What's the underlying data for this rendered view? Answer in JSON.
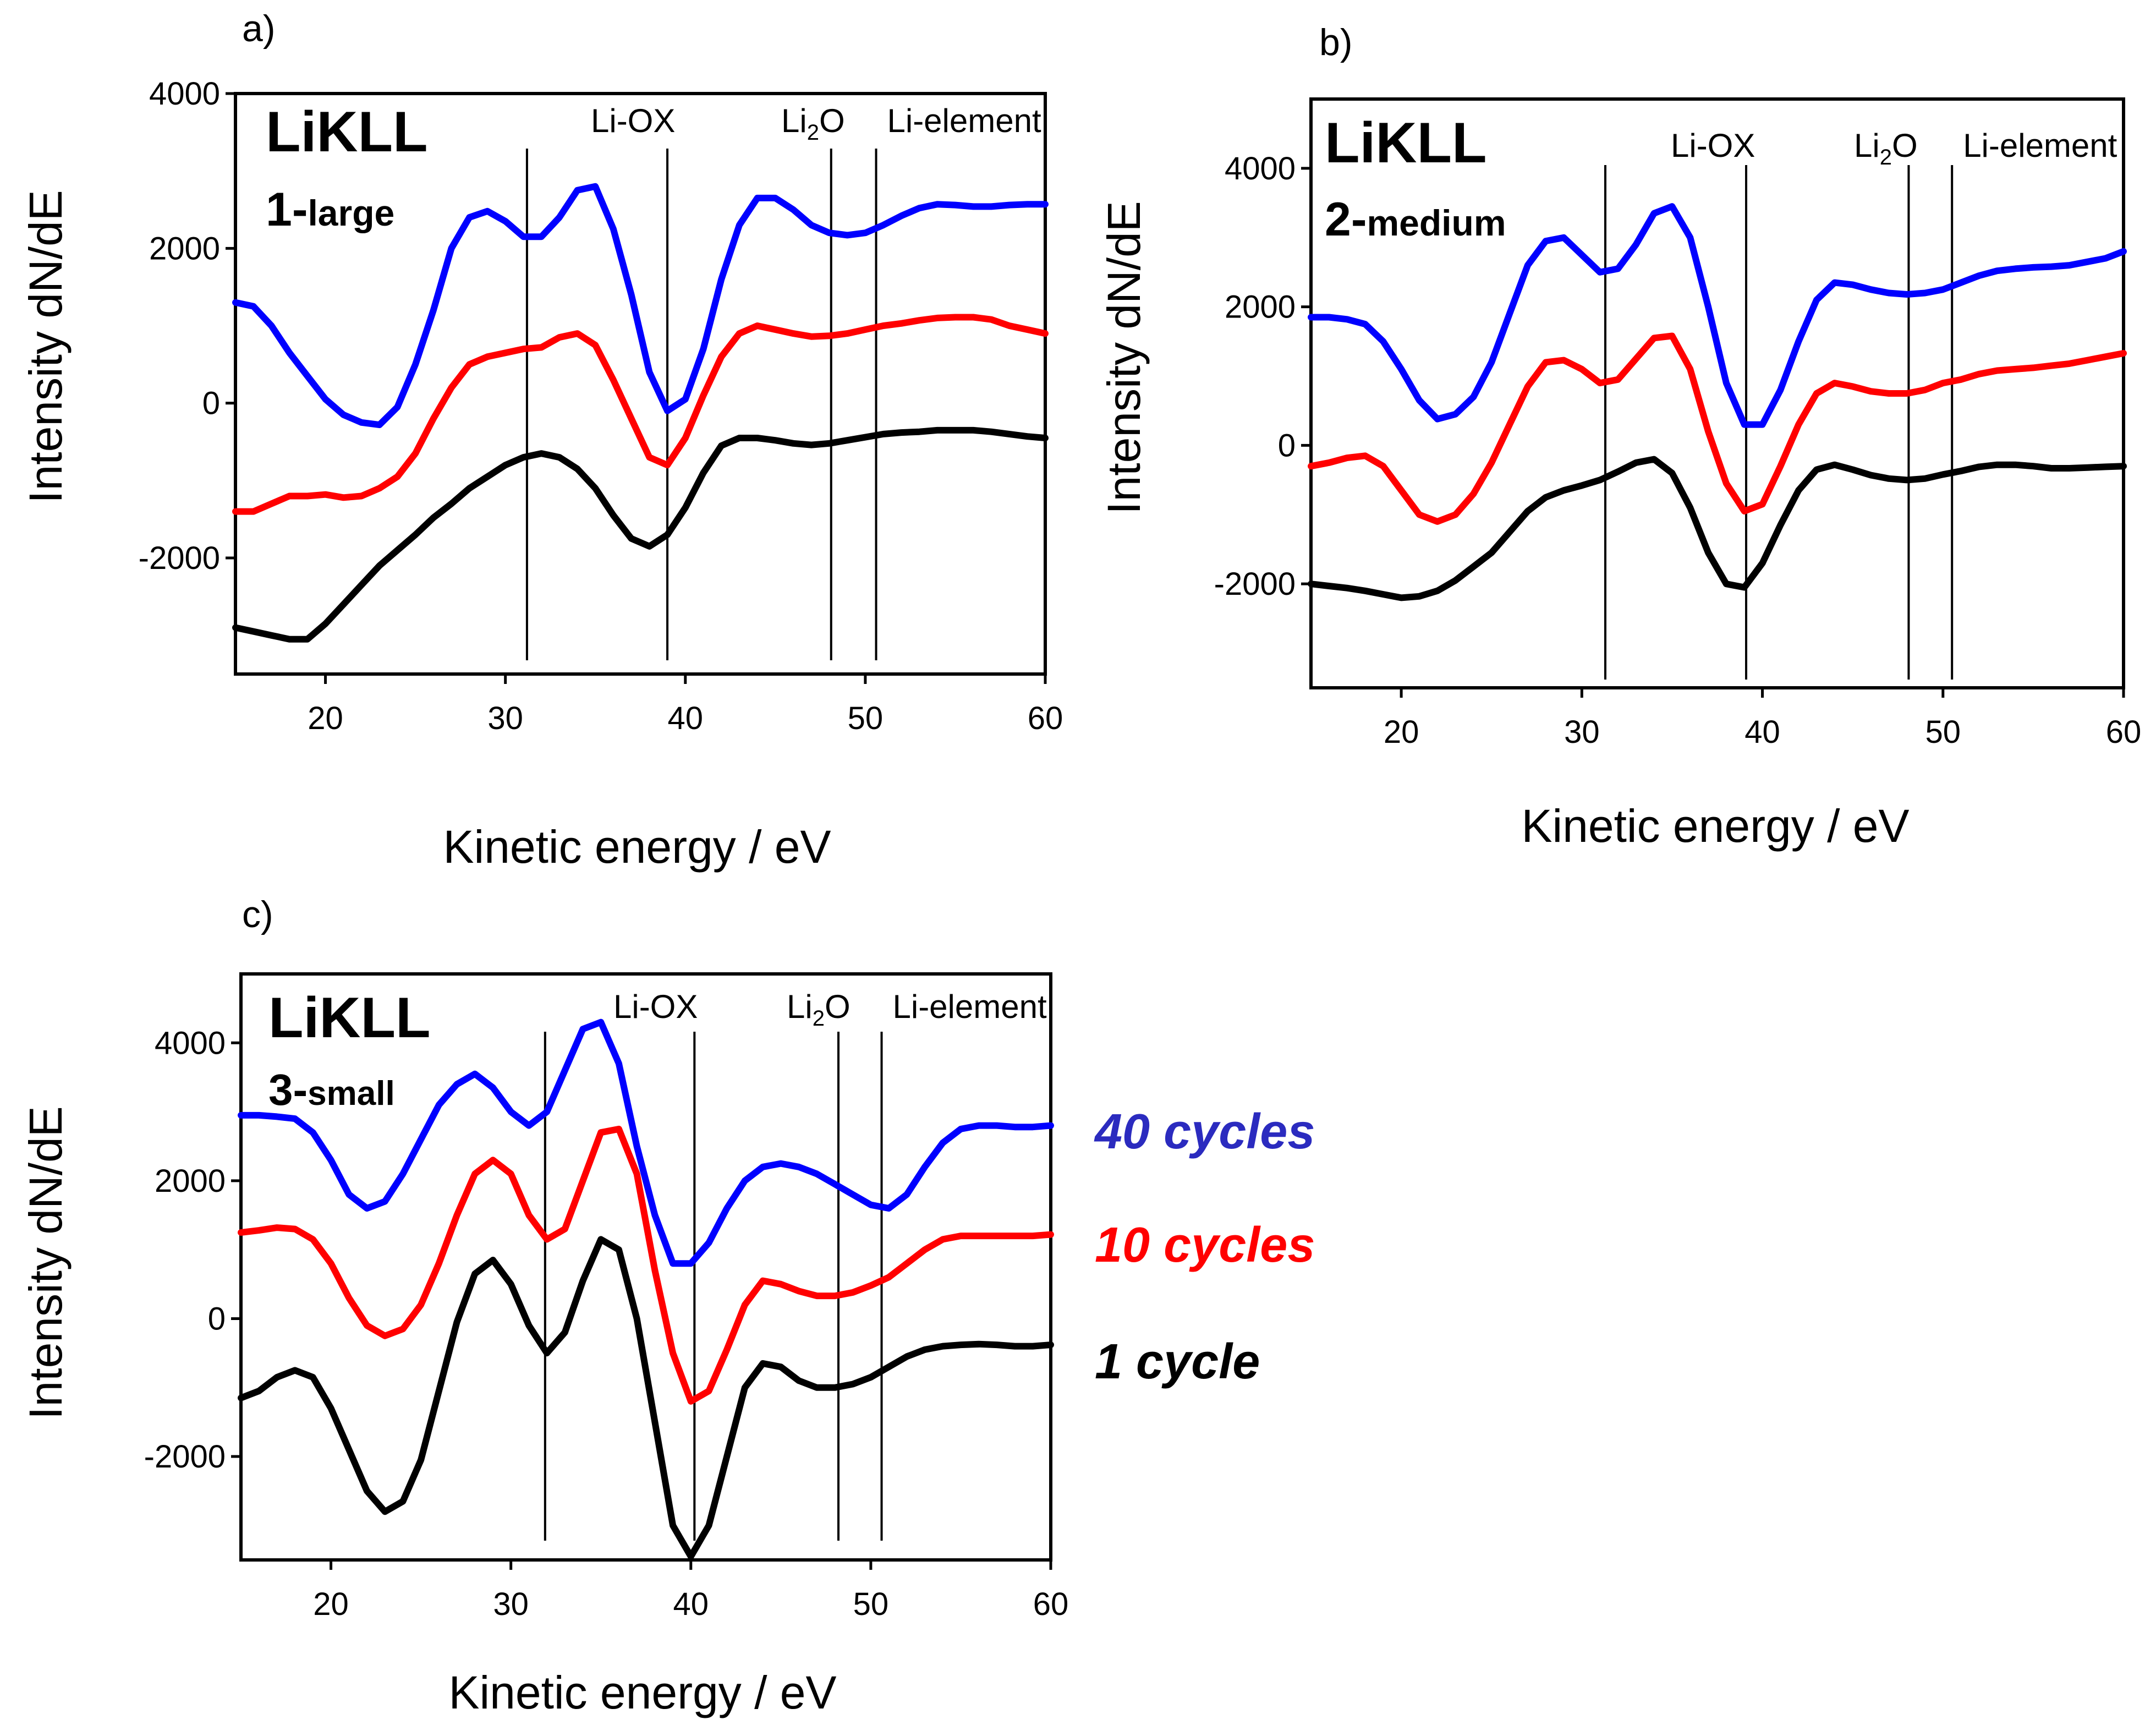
{
  "chart_data": [
    {
      "type": "line",
      "panel_label": "a)",
      "title": "LiKLL",
      "subtitle_num": "1-",
      "subtitle_word": "large",
      "xlabel": "Kinetic energy / eV",
      "ylabel": "Intensity  dN/dE",
      "xlim": [
        15,
        60
      ],
      "ylim": [
        -3500,
        4000
      ],
      "xticks": [
        20,
        30,
        40,
        50,
        60
      ],
      "yticks": [
        -2000,
        0,
        2000,
        4000
      ],
      "references": [
        {
          "label": "Li-OX",
          "x": 31.2
        },
        {
          "label": "",
          "x": 39
        },
        {
          "label_main": "Li",
          "label_sub": "2",
          "label_tail": "O",
          "x": 48.1
        },
        {
          "label": "Li-element",
          "x": 50.6
        }
      ],
      "series": [
        {
          "name": "40 cycles",
          "color": "#0000ff",
          "x": [
            15,
            16,
            17,
            18,
            19,
            20,
            21,
            22,
            23,
            24,
            25,
            26,
            27,
            28,
            29,
            30,
            31,
            32,
            33,
            34,
            35,
            36,
            37,
            38,
            39,
            40,
            41,
            42,
            43,
            44,
            45,
            46,
            47,
            48,
            49,
            50,
            51,
            52,
            53,
            54,
            55,
            56,
            57,
            58,
            59,
            60
          ],
          "y": [
            1300,
            1250,
            1000,
            650,
            350,
            50,
            -150,
            -250,
            -280,
            -50,
            500,
            1200,
            2000,
            2400,
            2480,
            2350,
            2150,
            2150,
            2400,
            2750,
            2800,
            2250,
            1400,
            400,
            -100,
            50,
            700,
            1600,
            2300,
            2650,
            2650,
            2500,
            2300,
            2200,
            2170,
            2200,
            2300,
            2420,
            2520,
            2570,
            2560,
            2540,
            2540,
            2560,
            2570,
            2570
          ]
        },
        {
          "name": "10 cycles",
          "color": "#ff0000",
          "x": [
            15,
            16,
            17,
            18,
            19,
            20,
            21,
            22,
            23,
            24,
            25,
            26,
            27,
            28,
            29,
            30,
            31,
            32,
            33,
            34,
            35,
            36,
            37,
            38,
            39,
            40,
            41,
            42,
            43,
            44,
            45,
            46,
            47,
            48,
            49,
            50,
            51,
            52,
            53,
            54,
            55,
            56,
            57,
            58,
            59,
            60
          ],
          "y": [
            -1400,
            -1400,
            -1300,
            -1200,
            -1200,
            -1180,
            -1220,
            -1200,
            -1100,
            -950,
            -650,
            -200,
            200,
            500,
            600,
            650,
            700,
            720,
            850,
            900,
            750,
            300,
            -200,
            -700,
            -800,
            -450,
            100,
            600,
            900,
            1000,
            950,
            900,
            860,
            870,
            900,
            950,
            1000,
            1030,
            1070,
            1100,
            1110,
            1110,
            1080,
            1000,
            950,
            900
          ]
        },
        {
          "name": "1 cycle",
          "color": "#000000",
          "x": [
            15,
            16,
            17,
            18,
            19,
            20,
            21,
            22,
            23,
            24,
            25,
            26,
            27,
            28,
            29,
            30,
            31,
            32,
            33,
            34,
            35,
            36,
            37,
            38,
            39,
            40,
            41,
            42,
            43,
            44,
            45,
            46,
            47,
            48,
            49,
            50,
            51,
            52,
            53,
            54,
            55,
            56,
            57,
            58,
            59,
            60
          ],
          "y": [
            -2900,
            -2950,
            -3000,
            -3050,
            -3050,
            -2850,
            -2600,
            -2350,
            -2100,
            -1900,
            -1700,
            -1480,
            -1300,
            -1100,
            -950,
            -800,
            -700,
            -650,
            -700,
            -850,
            -1100,
            -1450,
            -1750,
            -1850,
            -1700,
            -1350,
            -900,
            -550,
            -450,
            -450,
            -480,
            -520,
            -540,
            -520,
            -480,
            -440,
            -400,
            -380,
            -370,
            -350,
            -350,
            -350,
            -370,
            -400,
            -430,
            -450
          ]
        }
      ]
    },
    {
      "type": "line",
      "panel_label": "b)",
      "title": "LiKLL",
      "subtitle_num": "2-",
      "subtitle_word": "medium",
      "xlabel": "Kinetic energy / eV",
      "ylabel": "Intensity dN/dE",
      "xlim": [
        15,
        60
      ],
      "ylim": [
        -3500,
        5000
      ],
      "xticks": [
        20,
        30,
        40,
        50,
        60
      ],
      "yticks": [
        -2000,
        0,
        2000,
        4000
      ],
      "references": [
        {
          "label": "Li-OX",
          "x": 31.3
        },
        {
          "label": "",
          "x": 39.1
        },
        {
          "label_main": "Li",
          "label_sub": "2",
          "label_tail": "O",
          "x": 48.1
        },
        {
          "label": "Li-element",
          "x": 50.5
        }
      ],
      "series": [
        {
          "name": "40 cycles",
          "color": "#0000ff",
          "x": [
            15,
            16,
            17,
            18,
            19,
            20,
            21,
            22,
            23,
            24,
            25,
            26,
            27,
            28,
            29,
            30,
            31,
            32,
            33,
            34,
            35,
            36,
            37,
            38,
            39,
            40,
            41,
            42,
            43,
            44,
            45,
            46,
            47,
            48,
            49,
            50,
            51,
            52,
            53,
            54,
            55,
            56,
            57,
            58,
            59,
            60
          ],
          "y": [
            1850,
            1850,
            1820,
            1750,
            1500,
            1100,
            650,
            380,
            450,
            700,
            1200,
            1900,
            2600,
            2950,
            3000,
            2750,
            2500,
            2550,
            2900,
            3350,
            3450,
            3000,
            2000,
            900,
            300,
            300,
            800,
            1500,
            2100,
            2350,
            2320,
            2250,
            2200,
            2180,
            2200,
            2250,
            2350,
            2450,
            2520,
            2550,
            2570,
            2580,
            2600,
            2650,
            2700,
            2800
          ]
        },
        {
          "name": "10 cycles",
          "color": "#ff0000",
          "x": [
            15,
            16,
            17,
            18,
            19,
            20,
            21,
            22,
            23,
            24,
            25,
            26,
            27,
            28,
            29,
            30,
            31,
            32,
            33,
            34,
            35,
            36,
            37,
            38,
            39,
            40,
            41,
            42,
            43,
            44,
            45,
            46,
            47,
            48,
            49,
            50,
            51,
            52,
            53,
            54,
            55,
            56,
            57,
            58,
            59,
            60
          ],
          "y": [
            -300,
            -250,
            -180,
            -150,
            -300,
            -650,
            -1000,
            -1100,
            -1000,
            -700,
            -250,
            300,
            850,
            1200,
            1230,
            1100,
            900,
            950,
            1250,
            1550,
            1580,
            1100,
            200,
            -550,
            -950,
            -850,
            -300,
            300,
            750,
            900,
            850,
            780,
            750,
            750,
            800,
            900,
            950,
            1030,
            1080,
            1100,
            1120,
            1150,
            1180,
            1230,
            1280,
            1330
          ]
        },
        {
          "name": "1 cycle",
          "color": "#000000",
          "x": [
            15,
            16,
            17,
            18,
            19,
            20,
            21,
            22,
            23,
            24,
            25,
            26,
            27,
            28,
            29,
            30,
            31,
            32,
            33,
            34,
            35,
            36,
            37,
            38,
            39,
            40,
            41,
            42,
            43,
            44,
            45,
            46,
            47,
            48,
            49,
            50,
            51,
            52,
            53,
            54,
            55,
            56,
            57,
            58,
            59,
            60
          ],
          "y": [
            -2000,
            -2030,
            -2060,
            -2100,
            -2150,
            -2200,
            -2180,
            -2100,
            -1950,
            -1750,
            -1550,
            -1250,
            -950,
            -750,
            -650,
            -580,
            -500,
            -380,
            -250,
            -200,
            -400,
            -900,
            -1550,
            -2000,
            -2050,
            -1700,
            -1150,
            -650,
            -350,
            -280,
            -350,
            -430,
            -480,
            -500,
            -480,
            -420,
            -370,
            -310,
            -280,
            -280,
            -300,
            -330,
            -330,
            -320,
            -310,
            -300
          ]
        }
      ]
    },
    {
      "type": "line",
      "panel_label": "c)",
      "title": "LiKLL",
      "subtitle_num": "3-",
      "subtitle_word": "small",
      "xlabel": "Kinetic energy / eV",
      "ylabel": "Intensity dN/dE",
      "xlim": [
        15,
        60
      ],
      "ylim": [
        -3500,
        5000
      ],
      "xticks": [
        20,
        30,
        40,
        50,
        60
      ],
      "yticks": [
        -2000,
        0,
        2000,
        4000
      ],
      "references": [
        {
          "label": "Li-OX",
          "x": 31.9
        },
        {
          "label": "",
          "x": 40.2
        },
        {
          "label_main": "Li",
          "label_sub": "2",
          "label_tail": "O",
          "x": 48.2
        },
        {
          "label": "Li-element",
          "x": 50.6
        }
      ],
      "series": [
        {
          "name": "40 cycles",
          "color": "#0000ff",
          "x": [
            15,
            16,
            17,
            18,
            19,
            20,
            21,
            22,
            23,
            24,
            25,
            26,
            27,
            28,
            29,
            30,
            31,
            32,
            33,
            34,
            35,
            36,
            37,
            38,
            39,
            40,
            41,
            42,
            43,
            44,
            45,
            46,
            47,
            48,
            49,
            50,
            51,
            52,
            53,
            54,
            55,
            56,
            57,
            58,
            59,
            60
          ],
          "y": [
            2950,
            2950,
            2930,
            2900,
            2700,
            2300,
            1800,
            1600,
            1700,
            2100,
            2600,
            3100,
            3400,
            3550,
            3350,
            3000,
            2800,
            3000,
            3600,
            4200,
            4300,
            3700,
            2500,
            1500,
            800,
            800,
            1100,
            1600,
            2000,
            2200,
            2250,
            2200,
            2100,
            1950,
            1800,
            1650,
            1600,
            1800,
            2200,
            2550,
            2750,
            2800,
            2800,
            2780,
            2780,
            2800
          ]
        },
        {
          "name": "10 cycles",
          "color": "#ff0000",
          "x": [
            15,
            16,
            17,
            18,
            19,
            20,
            21,
            22,
            23,
            24,
            25,
            26,
            27,
            28,
            29,
            30,
            31,
            32,
            33,
            34,
            35,
            36,
            37,
            38,
            39,
            40,
            41,
            42,
            43,
            44,
            45,
            46,
            47,
            48,
            49,
            50,
            51,
            52,
            53,
            54,
            55,
            56,
            57,
            58,
            59,
            60
          ],
          "y": [
            1250,
            1280,
            1320,
            1300,
            1150,
            800,
            300,
            -100,
            -250,
            -150,
            200,
            800,
            1500,
            2100,
            2300,
            2100,
            1500,
            1150,
            1300,
            2000,
            2700,
            2750,
            2100,
            700,
            -500,
            -1200,
            -1050,
            -450,
            200,
            550,
            500,
            400,
            330,
            330,
            380,
            480,
            600,
            800,
            1000,
            1150,
            1200,
            1200,
            1200,
            1200,
            1200,
            1220
          ]
        },
        {
          "name": "1 cycle",
          "color": "#000000",
          "x": [
            15,
            16,
            17,
            18,
            19,
            20,
            21,
            22,
            23,
            24,
            25,
            26,
            27,
            28,
            29,
            30,
            31,
            32,
            33,
            34,
            35,
            36,
            37,
            38,
            39,
            40,
            41,
            42,
            43,
            44,
            45,
            46,
            47,
            48,
            49,
            50,
            51,
            52,
            53,
            54,
            55,
            56,
            57,
            58,
            59,
            60
          ],
          "y": [
            -1150,
            -1050,
            -850,
            -750,
            -850,
            -1300,
            -1900,
            -2500,
            -2800,
            -2650,
            -2050,
            -1050,
            -50,
            650,
            850,
            500,
            -100,
            -500,
            -200,
            550,
            1150,
            1000,
            0,
            -1500,
            -3000,
            -3450,
            -3000,
            -2000,
            -1000,
            -650,
            -700,
            -900,
            -1000,
            -1000,
            -950,
            -850,
            -700,
            -550,
            -450,
            -400,
            -380,
            -370,
            -380,
            -400,
            -400,
            -380
          ]
        }
      ]
    }
  ],
  "legend": [
    {
      "label": "40 cycles",
      "color": "#2b2bbf"
    },
    {
      "label": "10 cycles",
      "color": "#ff0000"
    },
    {
      "label": "1 cycle",
      "color": "#000000"
    }
  ]
}
